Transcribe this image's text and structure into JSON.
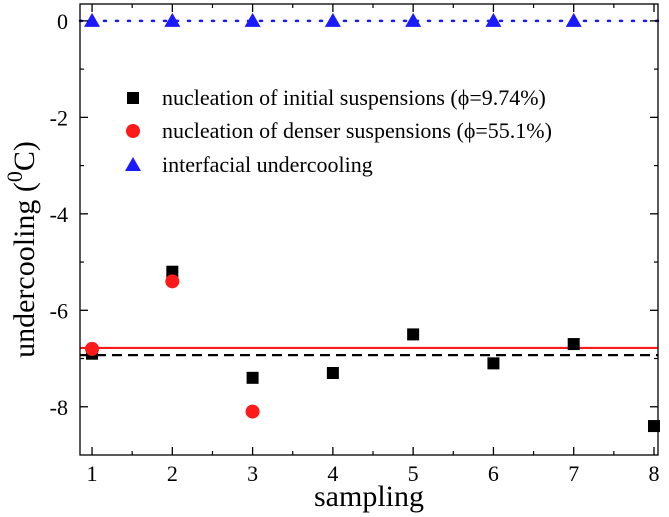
{
  "chart_data": {
    "type": "scatter",
    "xlabel": "sampling",
    "ylabel_main": "undercooling (",
    "ylabel_sup": "0",
    "ylabel_tail": "C)",
    "xlim": [
      0.85,
      8.05
    ],
    "ylim": [
      -9.0,
      0.35
    ],
    "xticks": [
      "1",
      "2",
      "3",
      "4",
      "5",
      "6",
      "7",
      "8"
    ],
    "yticks": [
      "0",
      "-2",
      "-4",
      "-6",
      "-8"
    ],
    "ytick_values": [
      0,
      -2,
      -4,
      -6,
      -8
    ],
    "series": [
      {
        "name": "nucleation of initial suspensions (ϕ=9.74%)",
        "marker": "square",
        "color": "#000000",
        "x": [
          1,
          2,
          3,
          4,
          5,
          6,
          7,
          8
        ],
        "y": [
          -6.9,
          -5.2,
          -7.4,
          -7.3,
          -6.5,
          -7.1,
          -6.7,
          -8.4
        ]
      },
      {
        "name": "nucleation of denser suspensions (ϕ=55.1%)",
        "marker": "circle",
        "color": "#ff1a1a",
        "x": [
          1,
          2,
          3
        ],
        "y": [
          -6.8,
          -5.4,
          -8.1
        ]
      },
      {
        "name": "interfacial undercooling",
        "marker": "triangle",
        "color": "#1a1aff",
        "x": [
          1,
          2,
          3,
          4,
          5,
          6,
          7
        ],
        "y": [
          0,
          0,
          0,
          0,
          0,
          0,
          0
        ]
      }
    ],
    "reference_lines": [
      {
        "y": -6.78,
        "color": "#ff1a1a",
        "style": "solid"
      },
      {
        "y": -6.93,
        "color": "#000000",
        "style": "dashed"
      },
      {
        "y": 0,
        "color": "#1a1aff",
        "style": "dotted"
      }
    ],
    "legend_position": "upper-left"
  }
}
